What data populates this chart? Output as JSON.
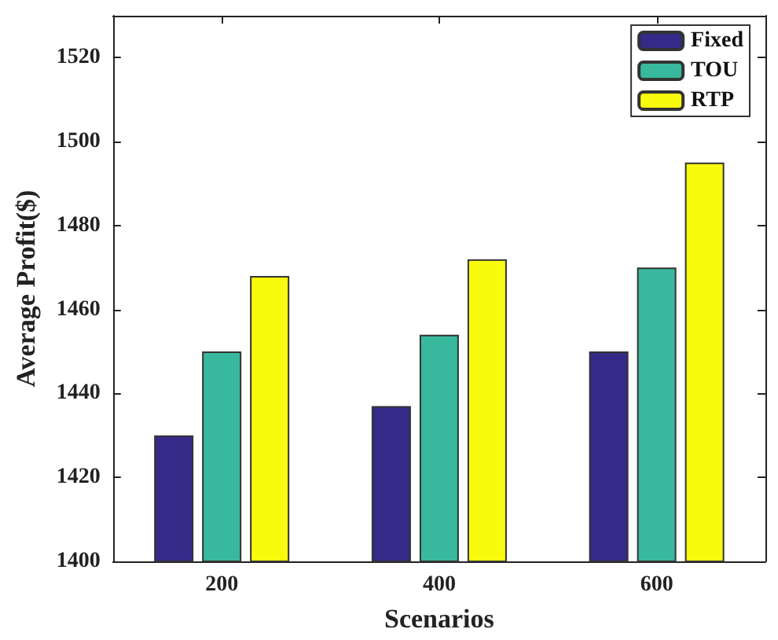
{
  "chart_data": {
    "type": "bar",
    "xlabel": "Scenarios",
    "ylabel": "Average Profit($)",
    "categories": [
      "200",
      "400",
      "600"
    ],
    "series": [
      {
        "name": "Fixed",
        "color": "#352a87",
        "values": [
          1430,
          1437,
          1450
        ]
      },
      {
        "name": "TOU",
        "color": "#38b99e",
        "values": [
          1450,
          1454,
          1470
        ]
      },
      {
        "name": "RTP",
        "color": "#f9fb0e",
        "values": [
          1468,
          1472,
          1495
        ]
      }
    ],
    "ylim": [
      1400,
      1530
    ],
    "yticks": [
      1400,
      1420,
      1440,
      1460,
      1480,
      1500,
      1520
    ],
    "grid": false,
    "legend": "top right"
  }
}
